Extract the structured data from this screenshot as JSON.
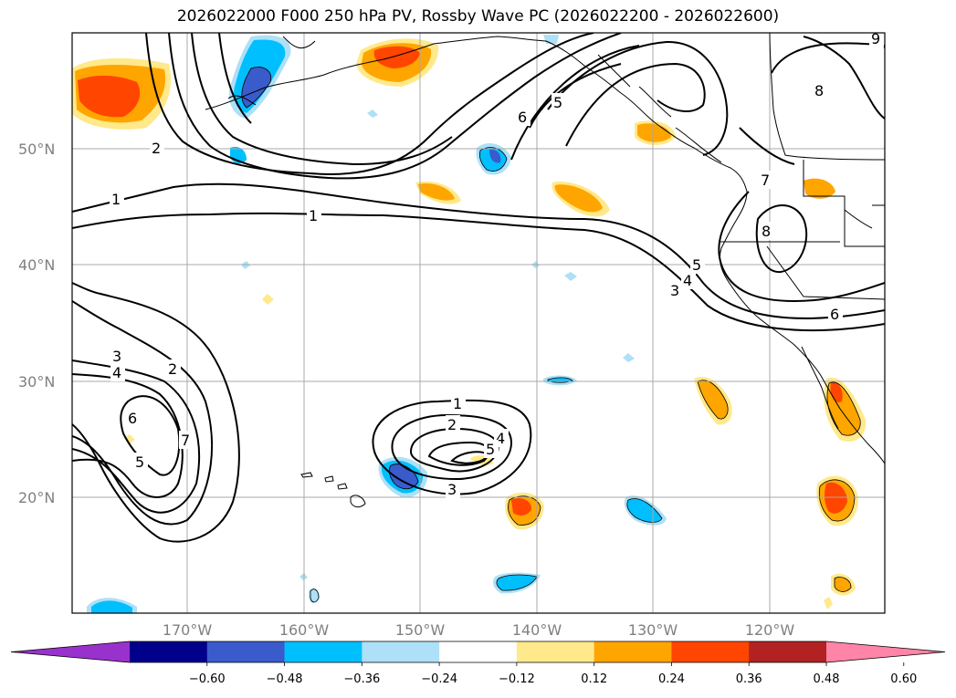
{
  "title": "2026022000 F000 250 hPa PV, Rossby Wave PC (2026022200 - 2026022600)",
  "map": {
    "lat_range": [
      10,
      60
    ],
    "lon_range": [
      -180,
      -110
    ],
    "lat_ticks": [
      {
        "value": 50,
        "label": "50°N"
      },
      {
        "value": 40,
        "label": "40°N"
      },
      {
        "value": 30,
        "label": "30°N"
      },
      {
        "value": 20,
        "label": "20°N"
      }
    ],
    "lon_ticks": [
      {
        "value": -170,
        "label": "170°W"
      },
      {
        "value": -160,
        "label": "160°W"
      },
      {
        "value": -150,
        "label": "150°W"
      },
      {
        "value": -140,
        "label": "140°W"
      },
      {
        "value": -130,
        "label": "130°W"
      },
      {
        "value": -120,
        "label": "120°W"
      }
    ],
    "contour_labels": [
      "1",
      "1",
      "1",
      "2",
      "2",
      "2",
      "3",
      "3",
      "3",
      "4",
      "4",
      "4",
      "5",
      "5",
      "5",
      "5",
      "6",
      "6",
      "6",
      "7",
      "7",
      "8",
      "8",
      "9"
    ]
  },
  "colorbar": {
    "ticks": [
      "−0.60",
      "−0.48",
      "−0.36",
      "−0.24",
      "−0.12",
      "0.12",
      "0.24",
      "0.36",
      "0.48",
      "0.60"
    ],
    "colors": [
      "#9932cc",
      "#00008b",
      "#3a5bcc",
      "#00bfff",
      "#aee0f7",
      "#ffffff",
      "#ffe98a",
      "#ffa500",
      "#ff4500",
      "#b22222",
      "#ff85a8"
    ],
    "extend": "both"
  }
}
